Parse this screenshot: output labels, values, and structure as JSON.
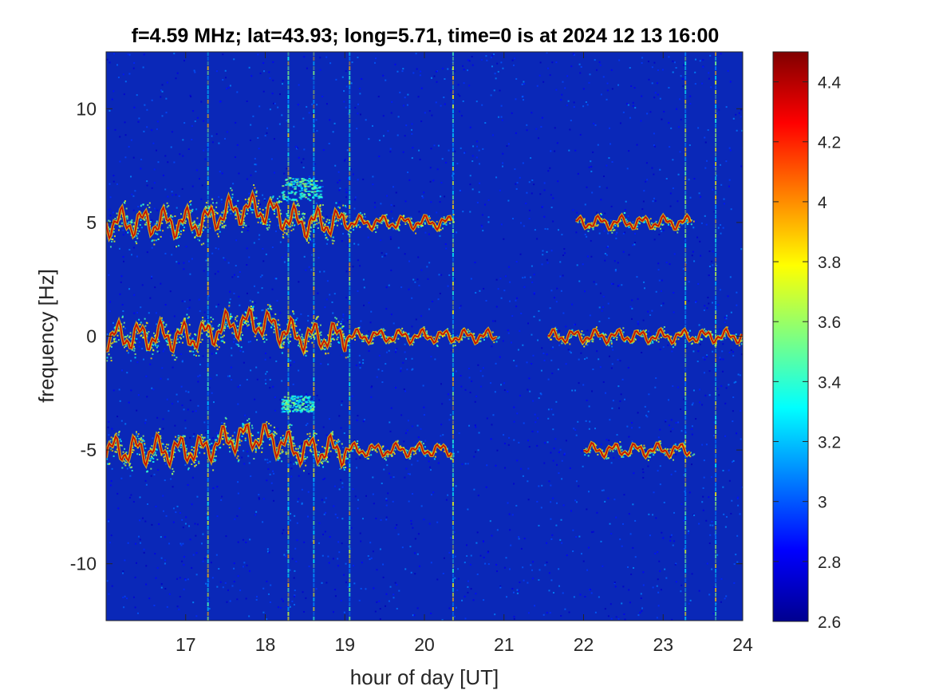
{
  "chart_data": {
    "type": "heatmap",
    "title": "f=4.59 MHz;  lat=43.93; long=5.71, time=0 is at 2024 12 13 16:00",
    "xlabel": "hour of day [UT]",
    "ylabel": "frequency [Hz]",
    "xlim": [
      16,
      24
    ],
    "ylim": [
      -12.5,
      12.5
    ],
    "x_ticks": [
      17,
      18,
      19,
      20,
      21,
      22,
      23,
      24
    ],
    "x_tick_labels": [
      "17",
      "18",
      "19",
      "20",
      "21",
      "22",
      "23",
      "24"
    ],
    "y_ticks": [
      10,
      5,
      0,
      -5,
      -10
    ],
    "y_tick_labels": [
      "10",
      "5",
      "0",
      "-5",
      "-10"
    ],
    "colorbar": {
      "colormap": "jet",
      "clim": [
        2.6,
        4.5
      ],
      "ticks": [
        4.4,
        4.2,
        4.0,
        3.8,
        3.6,
        3.4,
        3.2,
        3.0,
        2.8,
        2.6
      ],
      "tick_labels": [
        "4.4",
        "4.2",
        "4",
        "3.8",
        "3.6",
        "3.4",
        "3.2",
        "3",
        "2.8",
        "2.6"
      ]
    },
    "traces": [
      {
        "center_hz": 5,
        "segments": [
          [
            16.0,
            20.35
          ],
          [
            21.9,
            23.35
          ]
        ]
      },
      {
        "center_hz": 0,
        "segments": [
          [
            16.0,
            20.9
          ],
          [
            21.55,
            24.0
          ]
        ]
      },
      {
        "center_hz": -5,
        "segments": [
          [
            16.0,
            20.35
          ],
          [
            22.0,
            23.35
          ]
        ]
      }
    ],
    "patches": [
      {
        "x": [
          18.2,
          18.7
        ],
        "y": [
          6.0,
          7.0
        ]
      },
      {
        "x": [
          18.2,
          18.6
        ],
        "y": [
          -3.3,
          -2.6
        ]
      }
    ],
    "vertical_interference_hours": [
      17.27,
      18.28,
      18.6,
      19.05,
      20.35,
      23.27,
      23.65
    ]
  }
}
